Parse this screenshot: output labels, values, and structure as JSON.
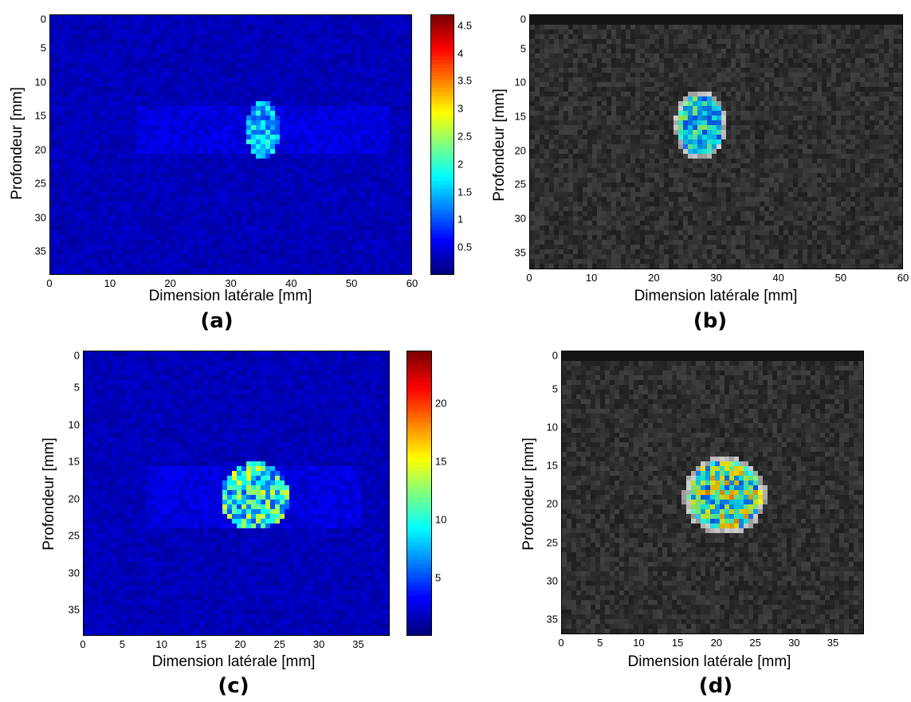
{
  "panels": [
    {
      "id": "a",
      "caption": "(a)",
      "xlabel": "Dimension latérale [mm]",
      "ylabel": "Profondeur [mm]",
      "xticks": [
        "0",
        "10",
        "20",
        "30",
        "40",
        "50",
        "60"
      ],
      "yticks": [
        "0",
        "5",
        "10",
        "15",
        "20",
        "25",
        "30",
        "35"
      ],
      "background": "jet-blue",
      "colorbar_ticks": [
        "4.5",
        "4",
        "3.5",
        "3",
        "2.5",
        "2",
        "1.5",
        "1",
        "0.5"
      ],
      "colorbar_max": 4.7
    },
    {
      "id": "b",
      "caption": "(b)",
      "xlabel": "Dimension latérale [mm]",
      "ylabel": "Profondeur [mm]",
      "xticks": [
        "0",
        "10",
        "20",
        "30",
        "40",
        "50",
        "60"
      ],
      "yticks": [
        "0",
        "5",
        "10",
        "15",
        "20",
        "25",
        "30",
        "35"
      ],
      "background": "ultrasound-gray"
    },
    {
      "id": "c",
      "caption": "(c)",
      "xlabel": "Dimension latérale [mm]",
      "ylabel": "Profondeur [mm]",
      "xticks": [
        "0",
        "5",
        "10",
        "15",
        "20",
        "25",
        "30",
        "35"
      ],
      "yticks": [
        "0",
        "5",
        "10",
        "15",
        "20",
        "25",
        "30",
        "35"
      ],
      "background": "jet-blue",
      "colorbar_ticks": [
        "20",
        "15",
        "10",
        "5"
      ],
      "colorbar_max": 24.5
    },
    {
      "id": "d",
      "caption": "(d)",
      "xlabel": "Dimension latérale [mm]",
      "ylabel": "Profondeur [mm]",
      "xticks": [
        "0",
        "5",
        "10",
        "15",
        "20",
        "25",
        "30",
        "35"
      ],
      "yticks": [
        "0",
        "5",
        "10",
        "15",
        "20",
        "25",
        "30",
        "35"
      ],
      "background": "ultrasound-gray"
    }
  ],
  "colors": {
    "jet_background": "#0a14a8",
    "ultrasound_background": "#2a2a2a"
  }
}
